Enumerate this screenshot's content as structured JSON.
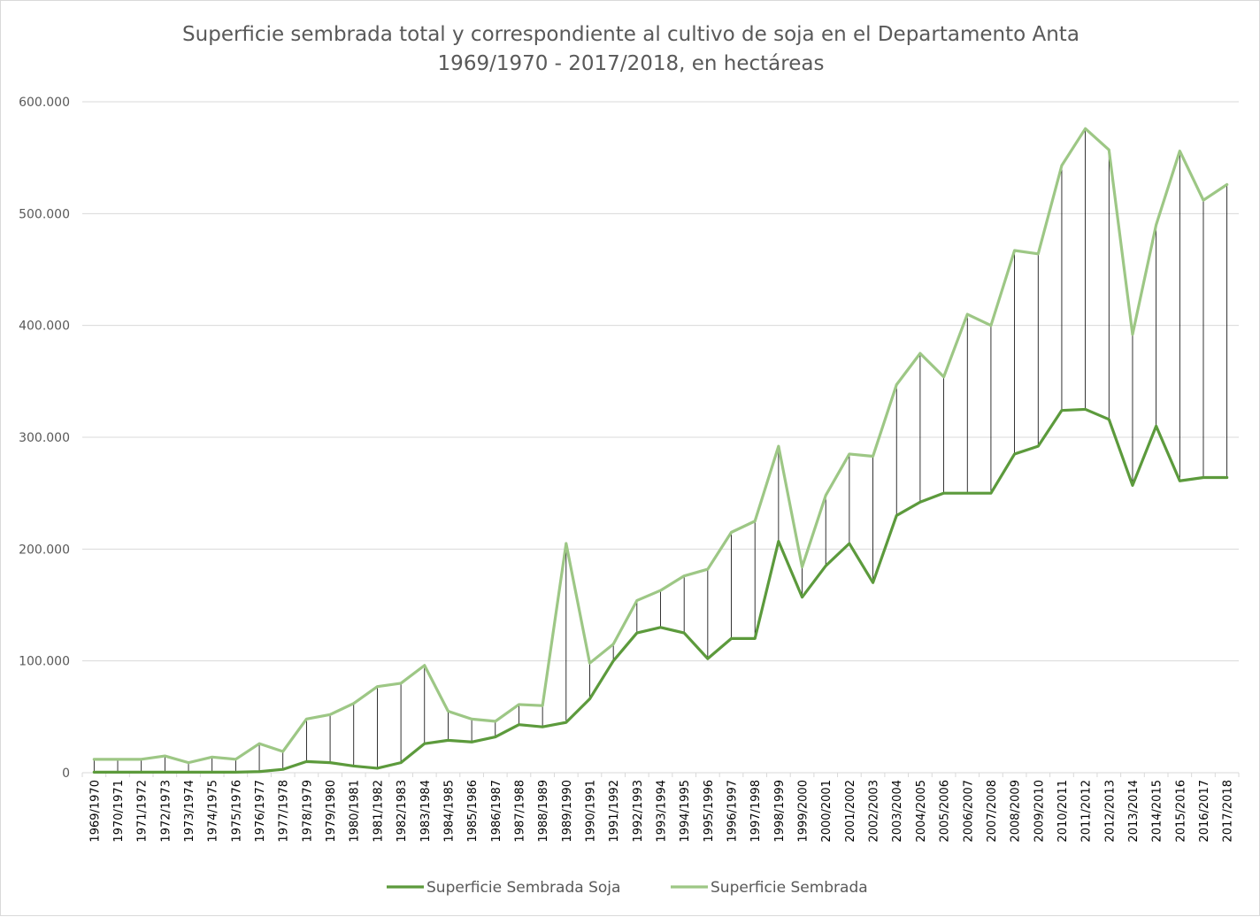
{
  "chart_data": {
    "type": "line",
    "title_line1": "Superficie sembrada total y correspondiente al cultivo de soja en el Departamento Anta",
    "title_line2": "1969/1970 - 2017/2018, en hectáreas",
    "xlabel": "",
    "ylabel": "",
    "ylim": [
      0,
      600000
    ],
    "y_ticks": [
      0,
      100000,
      200000,
      300000,
      400000,
      500000,
      600000
    ],
    "y_tick_labels": [
      "0",
      "100.000",
      "200.000",
      "300.000",
      "400.000",
      "500.000",
      "600.000"
    ],
    "grid": true,
    "legend_position": "bottom",
    "hi_lo_lines": true,
    "categories": [
      "1969/1970",
      "1970/1971",
      "1971/1972",
      "1972/1973",
      "1973/1974",
      "1974/1975",
      "1975/1976",
      "1976/1977",
      "1977/1978",
      "1978/1979",
      "1979/1980",
      "1980/1981",
      "1981/1982",
      "1982/1983",
      "1983/1984",
      "1984/1985",
      "1985/1986",
      "1986/1987",
      "1987/1988",
      "1988/1989",
      "1989/1990",
      "1990/1991",
      "1991/1992",
      "1992/1993",
      "1993/1994",
      "1994/1995",
      "1995/1996",
      "1996/1997",
      "1997/1998",
      "1998/1999",
      "1999/2000",
      "2000/2001",
      "2001/2002",
      "2002/2003",
      "2003/2004",
      "2004/2005",
      "2005/2006",
      "2006/2007",
      "2007/2008",
      "2008/2009",
      "2009/2010",
      "2010/2011",
      "2011/2012",
      "2012/2013",
      "2013/2014",
      "2014/2015",
      "2015/2016",
      "2016/2017",
      "2017/2018"
    ],
    "series": [
      {
        "name": "Superficie Sembrada Soja",
        "color": "#5c9a3c",
        "values": [
          500,
          500,
          500,
          500,
          500,
          500,
          500,
          1000,
          3000,
          10000,
          9000,
          6000,
          4000,
          9000,
          26000,
          29000,
          27500,
          32000,
          43000,
          41000,
          45000,
          66000,
          100000,
          125000,
          130000,
          125000,
          102000,
          120000,
          120000,
          207000,
          157000,
          185000,
          205000,
          170000,
          230000,
          242000,
          250000,
          250000,
          250000,
          285000,
          292000,
          324000,
          325000,
          316000,
          257000,
          310000,
          261000,
          264000,
          264000
        ]
      },
      {
        "name": "Superficie Sembrada",
        "color": "#9dc785",
        "values": [
          12000,
          12000,
          12000,
          15000,
          9000,
          14000,
          12000,
          26000,
          19000,
          48000,
          52000,
          62000,
          77000,
          80000,
          96000,
          55000,
          48000,
          46000,
          61000,
          60000,
          205000,
          98000,
          115000,
          154000,
          163000,
          176000,
          182000,
          215000,
          225000,
          292000,
          184000,
          248000,
          285000,
          283000,
          347000,
          375000,
          354000,
          410000,
          400000,
          467000,
          464000,
          543000,
          576000,
          557000,
          392000,
          490000,
          556000,
          512000,
          526000
        ]
      }
    ]
  }
}
